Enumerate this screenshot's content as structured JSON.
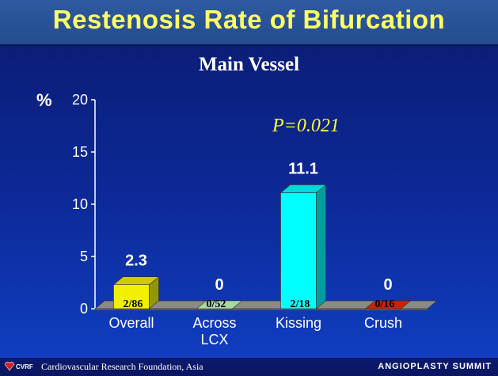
{
  "slide": {
    "title": "Restenosis Rate of Bifurcation",
    "subtitle": "Main Vessel",
    "y_unit": "%",
    "p_value": "P=0.021"
  },
  "footer": {
    "org": "Cardiovascular Research Foundation, Asia",
    "logo_text": "CVRF",
    "brand": "ANGIOPLASTY SUMMIT"
  },
  "colors": {
    "title_text": "#ffff66",
    "p_value_text": "#ffff33",
    "overall_bar": "#f0f000",
    "across_lcx_bar": "#a8d8a8",
    "kissing_bar": "#00ffff",
    "crush_bar": "#cc2200"
  },
  "chart_data": {
    "type": "bar",
    "categories": [
      "Overall",
      "Across\nLCX",
      "Kissing",
      "Crush"
    ],
    "category_lines": [
      [
        "Overall"
      ],
      [
        "Across",
        "LCX"
      ],
      [
        "Kissing"
      ],
      [
        "Crush"
      ]
    ],
    "values": [
      2.3,
      0,
      11.1,
      0
    ],
    "value_labels": [
      "2.3",
      "0",
      "11.1",
      "0"
    ],
    "fractions": [
      "2/86",
      "0/52",
      "2/18",
      "0/16"
    ],
    "colors": [
      "#f0f000",
      "#a8d8a8",
      "#00ffff",
      "#cc2200"
    ],
    "ylim": [
      0,
      20
    ],
    "yticks": [
      0,
      5,
      10,
      15,
      20
    ],
    "ylabel": "%",
    "xlabel": "",
    "title": "Main Vessel",
    "style": "3d"
  }
}
